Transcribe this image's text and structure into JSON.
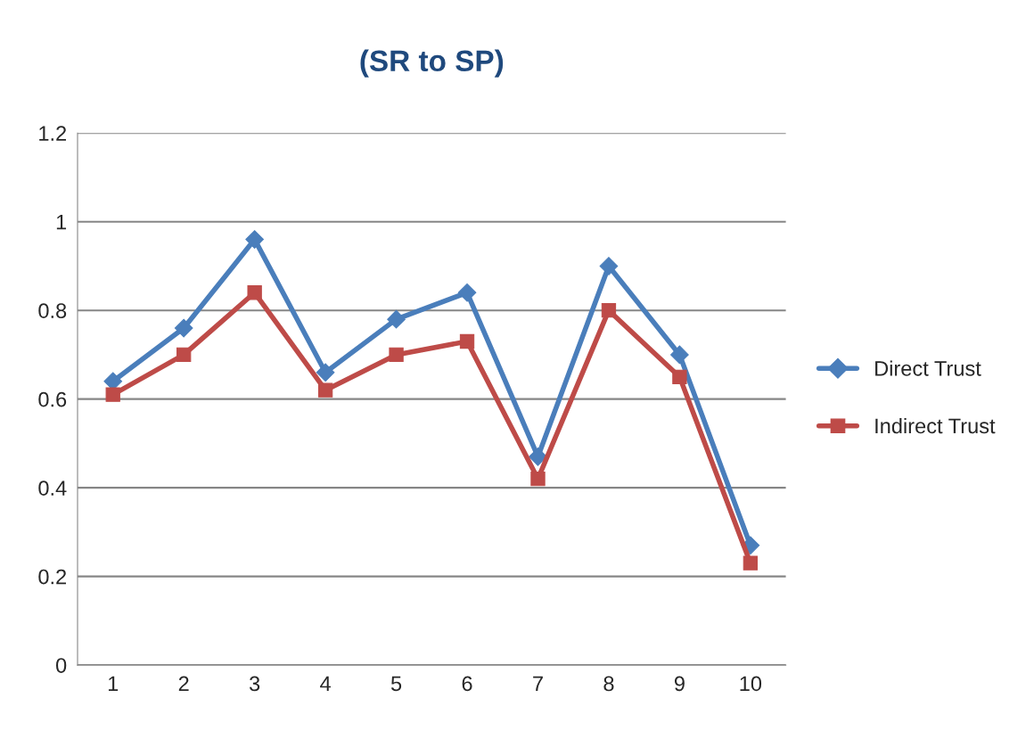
{
  "chart_data": {
    "type": "line",
    "title": "(SR to SP)",
    "categories": [
      "1",
      "2",
      "3",
      "4",
      "5",
      "6",
      "7",
      "8",
      "9",
      "10"
    ],
    "series": [
      {
        "name": "Direct Trust",
        "color": "#4a7ebb",
        "marker": "diamond",
        "values": [
          0.64,
          0.76,
          0.96,
          0.66,
          0.78,
          0.84,
          0.47,
          0.9,
          0.7,
          0.27
        ]
      },
      {
        "name": "Indirect Trust",
        "color": "#be4b48",
        "marker": "square",
        "values": [
          0.61,
          0.7,
          0.84,
          0.62,
          0.7,
          0.73,
          0.42,
          0.8,
          0.65,
          0.23
        ]
      }
    ],
    "ylim": [
      0,
      1.2
    ],
    "yticks": [
      0,
      0.2,
      0.4,
      0.6,
      0.8,
      1,
      1.2
    ],
    "grid": "y",
    "legend": "right"
  }
}
